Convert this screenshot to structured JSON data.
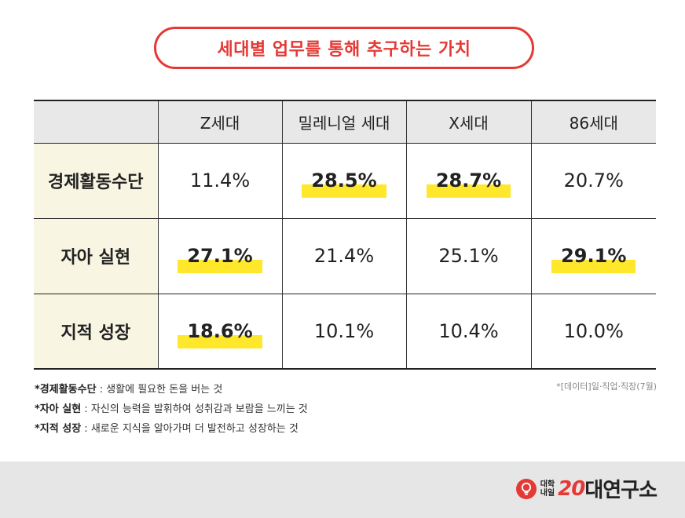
{
  "header": {
    "title": "세대별 업무를 통해 추구하는 가치"
  },
  "chart_data": {
    "type": "table",
    "title": "세대별 업무를 통해 추구하는 가치",
    "columns": [
      "Z세대",
      "밀레니얼 세대",
      "X세대",
      "86세대"
    ],
    "rows": [
      {
        "label": "경제활동수단",
        "values": [
          "11.4%",
          "28.5%",
          "28.7%",
          "20.7%"
        ],
        "highlight": [
          false,
          true,
          true,
          false
        ]
      },
      {
        "label": "자아 실현",
        "values": [
          "27.1%",
          "21.4%",
          "25.1%",
          "29.1%"
        ],
        "highlight": [
          true,
          false,
          false,
          true
        ]
      },
      {
        "label": "지적 성장",
        "values": [
          "18.6%",
          "10.1%",
          "10.4%",
          "10.0%"
        ],
        "highlight": [
          true,
          false,
          false,
          false
        ]
      }
    ]
  },
  "notes": [
    {
      "term": "*경제활동수단",
      "desc": " : 생활에 필요한 돈을 버는 것"
    },
    {
      "term": "*자아 실현",
      "desc": " : 자신의 능력을 발휘하여 성취감과 보람을 느끼는 것"
    },
    {
      "term": "*지적 성장",
      "desc": " : 새로운 지식을 알아가며 더 발전하고 성장하는 것"
    }
  ],
  "source": "*[데이터]일·직업·직장(7월)",
  "footer": {
    "logo_small_top": "대학",
    "logo_small_bottom": "내일",
    "logo_number": "20",
    "logo_text": "대연구소"
  },
  "colors": {
    "accent": "#e53935",
    "highlight": "#ffe82b",
    "header_bg": "#e8e8e8",
    "label_bg": "#f8f5e3",
    "footer_bg": "#e6e6e6"
  }
}
